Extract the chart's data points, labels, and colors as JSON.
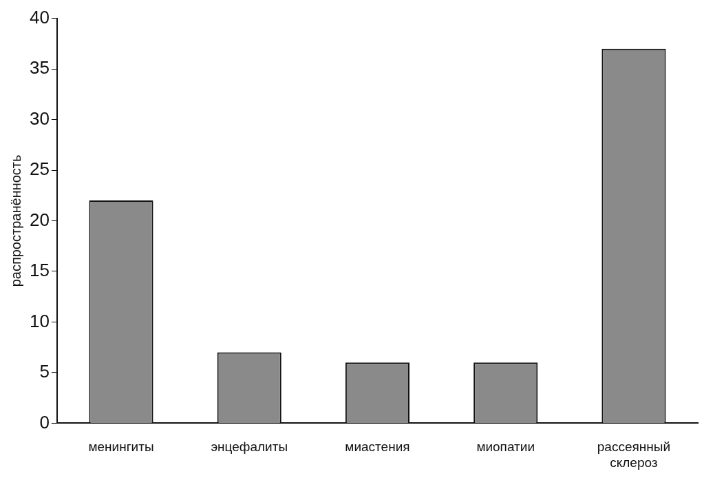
{
  "chart_data": {
    "type": "bar",
    "ylabel": "распространённость",
    "categories": [
      "менингиты",
      "энцефалиты",
      "миастения",
      "миопатии",
      "рассеянный склероз"
    ],
    "values": [
      22,
      7,
      6,
      6,
      37
    ],
    "color": "#8a8a8a",
    "ylim": [
      0,
      40
    ],
    "yticks": [
      0,
      5,
      10,
      15,
      20,
      25,
      30,
      35,
      40
    ],
    "grid": false,
    "legend": false
  }
}
